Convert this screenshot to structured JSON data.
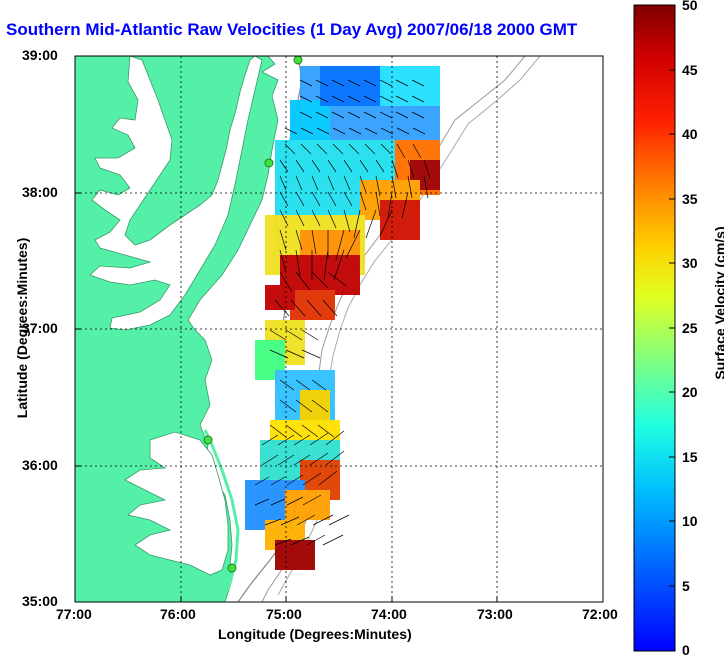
{
  "map": {
    "title": "Southern Mid-Atlantic Raw Velocities (1 Day Avg) 2007/06/18 2000 GMT",
    "xlabel": "Longitude (Degrees:Minutes)",
    "ylabel": "Latitude (Degrees:Minutes)",
    "x_ticks": [
      "77:00",
      "76:00",
      "75:00",
      "74:00",
      "73:00",
      "72:00"
    ],
    "y_ticks": [
      "39:00",
      "38:00",
      "37:00",
      "36:00",
      "35:00"
    ],
    "colorbar": {
      "label": "Surface Velocity (cm/s)",
      "ticks": [
        "50",
        "45",
        "40",
        "35",
        "30",
        "25",
        "20",
        "15",
        "10",
        "5",
        "0"
      ],
      "min": 0,
      "max": 50
    },
    "colors": {
      "land": "#55f0a8",
      "title": "#0000ff",
      "frame": "#000000"
    },
    "lon_range": [
      -77,
      -72
    ],
    "lat_range": [
      35,
      39
    ]
  }
}
